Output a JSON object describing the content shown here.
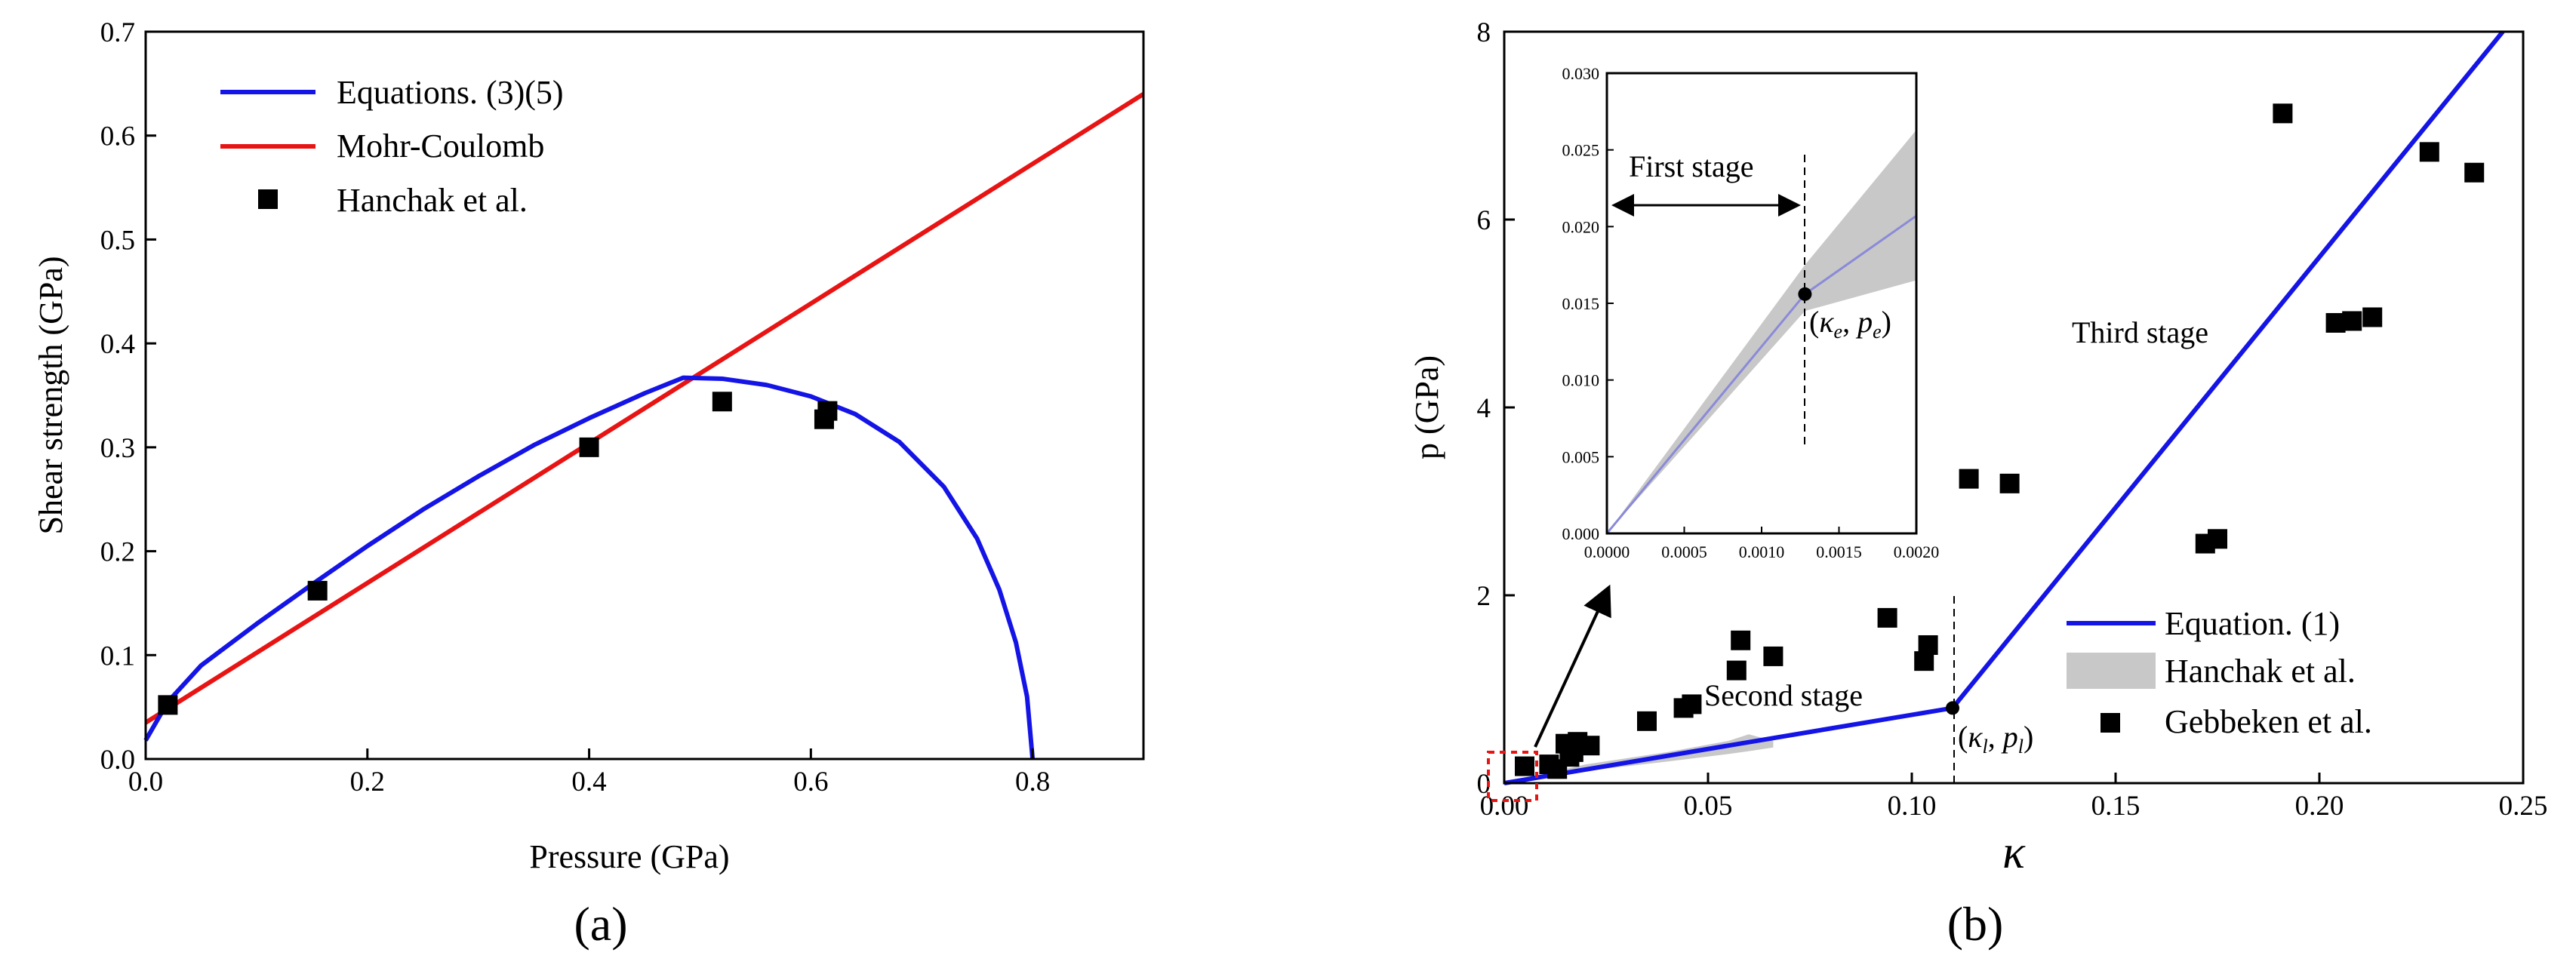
{
  "chart_data": [
    {
      "id": "a",
      "type": "line",
      "panel_label": "(a)",
      "title": "",
      "xlabel": "Pressure (GPa)",
      "ylabel": "Shear strength (GPa)",
      "xlim": [
        0,
        0.9
      ],
      "ylim": [
        0,
        0.7
      ],
      "xticks": [
        0,
        0.2,
        0.4,
        0.6,
        0.8
      ],
      "xtick_labels": [
        "0.0",
        "0.2",
        "0.4",
        "0.6",
        "0.8"
      ],
      "yticks": [
        0,
        0.1,
        0.2,
        0.3,
        0.4,
        0.5,
        0.6,
        0.7
      ],
      "ytick_labels": [
        "0.0",
        "0.1",
        "0.2",
        "0.3",
        "0.4",
        "0.5",
        "0.6",
        "0.7"
      ],
      "legend_position": "top-left",
      "series": [
        {
          "name": "Equations. (3)(5)",
          "kind": "line",
          "color": "#1414e6",
          "x": [
            0.0,
            0.02,
            0.05,
            0.1,
            0.15,
            0.2,
            0.25,
            0.3,
            0.35,
            0.4,
            0.45,
            0.485,
            0.52,
            0.56,
            0.6,
            0.64,
            0.68,
            0.72,
            0.75,
            0.77,
            0.785,
            0.795,
            0.8
          ],
          "y": [
            0.018,
            0.055,
            0.09,
            0.13,
            0.168,
            0.205,
            0.24,
            0.272,
            0.302,
            0.328,
            0.352,
            0.367,
            0.366,
            0.36,
            0.349,
            0.332,
            0.305,
            0.262,
            0.212,
            0.163,
            0.112,
            0.06,
            0.0
          ]
        },
        {
          "name": "Mohr-Coulomb",
          "kind": "line",
          "color": "#e81414",
          "x": [
            0.0,
            0.9
          ],
          "y": [
            0.035,
            0.64
          ]
        },
        {
          "name": "Hanchak et al.",
          "kind": "scatter",
          "marker": "square",
          "color": "#000000",
          "x": [
            0.02,
            0.155,
            0.4,
            0.52,
            0.612,
            0.615
          ],
          "y": [
            0.052,
            0.162,
            0.3,
            0.344,
            0.327,
            0.335
          ]
        }
      ]
    },
    {
      "id": "b",
      "type": "line",
      "panel_label": "(b)",
      "title": "",
      "xlabel": "κ",
      "ylabel": "p (GPa)",
      "xlim": [
        0,
        0.25
      ],
      "ylim": [
        0,
        8
      ],
      "xticks": [
        0,
        0.05,
        0.1,
        0.15,
        0.2,
        0.25
      ],
      "xtick_labels": [
        "0.00",
        "0.05",
        "0.10",
        "0.15",
        "0.20",
        "0.25"
      ],
      "yticks": [
        0,
        2,
        4,
        6,
        8
      ],
      "ytick_labels": [
        "0",
        "2",
        "4",
        "6",
        "8"
      ],
      "legend_position": "bottom-right",
      "series": [
        {
          "name": "Equation. (1)",
          "kind": "line",
          "color": "#1414e6",
          "x": [
            0.0,
            0.11,
            0.245
          ],
          "y": [
            0.0,
            0.8,
            8.0
          ]
        },
        {
          "name": "Hanchak et al.",
          "kind": "band",
          "color": "#c8c8c8",
          "x": [
            0.0,
            0.02,
            0.04,
            0.055,
            0.06,
            0.066
          ],
          "y_low": [
            0.0,
            0.13,
            0.23,
            0.31,
            0.34,
            0.38
          ],
          "y_high": [
            0.0,
            0.2,
            0.33,
            0.45,
            0.52,
            0.45
          ]
        },
        {
          "name": "Gebbeken et al.",
          "kind": "scatter",
          "marker": "square",
          "color": "#000000",
          "x": [
            0.005,
            0.011,
            0.013,
            0.015,
            0.016,
            0.017,
            0.018,
            0.021,
            0.035,
            0.044,
            0.046,
            0.057,
            0.058,
            0.066,
            0.094,
            0.103,
            0.104,
            0.114,
            0.124,
            0.172,
            0.175,
            0.191,
            0.204,
            0.208,
            0.213,
            0.227,
            0.238
          ],
          "y": [
            0.18,
            0.2,
            0.15,
            0.42,
            0.28,
            0.33,
            0.44,
            0.4,
            0.66,
            0.8,
            0.84,
            1.2,
            1.52,
            1.35,
            1.76,
            1.3,
            1.47,
            3.24,
            3.19,
            2.55,
            2.6,
            7.13,
            4.9,
            4.92,
            4.96,
            6.72,
            6.5
          ]
        }
      ],
      "annotations": {
        "knee_label": "(κl, pl)",
        "knee_point": {
          "x": 0.11,
          "y": 0.8
        },
        "second_stage": "Second stage",
        "third_stage": "Third stage"
      },
      "inset": {
        "xlim": [
          0,
          0.002
        ],
        "ylim": [
          0,
          0.03
        ],
        "xticks": [
          0,
          0.0005,
          0.001,
          0.0015,
          0.002
        ],
        "xtick_labels": [
          "0.0000",
          "0.0005",
          "0.0010",
          "0.0015",
          "0.0020"
        ],
        "yticks": [
          0,
          0.005,
          0.01,
          0.015,
          0.02,
          0.025,
          0.03
        ],
        "ytick_labels": [
          "0.000",
          "0.005",
          "0.010",
          "0.015",
          "0.020",
          "0.025",
          "0.030"
        ],
        "line": {
          "x": [
            0.0,
            0.00128,
            0.002
          ],
          "y": [
            0.0,
            0.0156,
            0.0207
          ]
        },
        "band": {
          "x": [
            0.0,
            0.00128,
            0.002
          ],
          "y_low": [
            0.0,
            0.0145,
            0.0165
          ],
          "y_high": [
            0.0,
            0.0175,
            0.0263
          ]
        },
        "elastic_point": {
          "x": 0.00128,
          "y": 0.0156
        },
        "elastic_label": "(κe, pe)",
        "first_stage": "First stage"
      }
    }
  ]
}
